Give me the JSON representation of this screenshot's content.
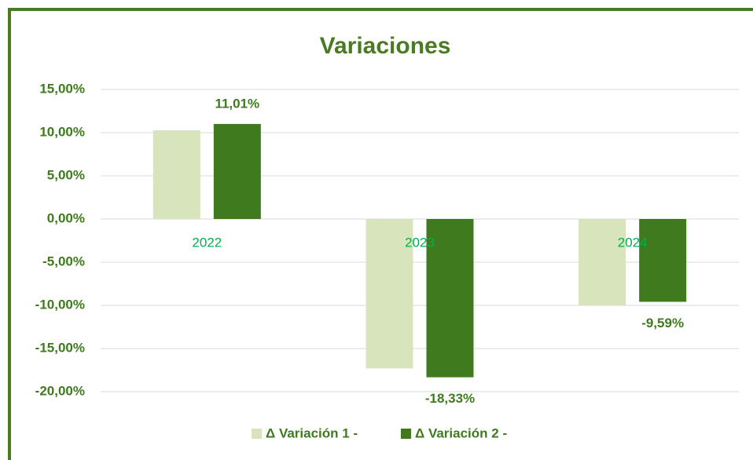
{
  "chart_data": {
    "type": "bar",
    "title": "Variaciones",
    "categories": [
      "2022",
      "2023",
      "2024"
    ],
    "series": [
      {
        "name": "Δ Variación 1 -",
        "color": "#d8e4bc",
        "values": [
          10.27,
          -17.3,
          -10.0
        ]
      },
      {
        "name": "Δ Variación 2 -",
        "color": "#3f7a1e",
        "values": [
          11.01,
          -18.33,
          -9.59
        ],
        "value_labels": [
          "11,01%",
          "-18,33%",
          "-9,59%"
        ]
      }
    ],
    "ylim": [
      -20,
      15
    ],
    "yticks": [
      {
        "value": 15,
        "label": "15,00%"
      },
      {
        "value": 10,
        "label": "10,00%"
      },
      {
        "value": 5,
        "label": "5,00%"
      },
      {
        "value": 0,
        "label": "0,00%"
      },
      {
        "value": -5,
        "label": "-5,00%"
      },
      {
        "value": -10,
        "label": "-10,00%"
      },
      {
        "value": -15,
        "label": "-15,00%"
      },
      {
        "value": -20,
        "label": "-20,00%"
      }
    ],
    "grid": true,
    "legend": "bottom"
  }
}
